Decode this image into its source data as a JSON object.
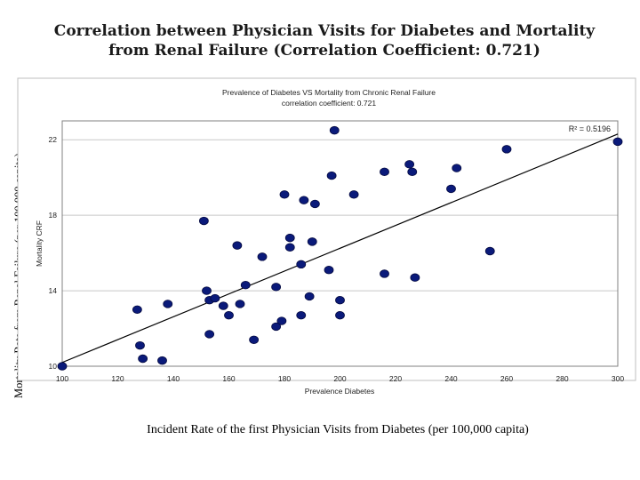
{
  "slide": {
    "title_line1": "Correlation between Physician Visits for Diabetes and Mortality",
    "title_line2": "from Renal Failure (Correlation Coefficient: 0.721)",
    "outer_ylabel": "Mortality Rate from Renal Failure (per 100,000 capita)",
    "outer_xlabel": "Incident Rate of the first Physician Visits from Diabetes (per 100,000 capita)"
  },
  "chart_data": {
    "type": "scatter",
    "title": "Prevalence of Diabetes VS Mortality from Chronic Renal Failure",
    "subtitle": "correlation coefficient: 0.721",
    "xlabel": "Prevalence Diabetes",
    "ylabel": "Mortality CRF",
    "xlim": [
      100,
      300
    ],
    "ylim": [
      10,
      23
    ],
    "x_ticks": [
      100,
      120,
      140,
      160,
      180,
      200,
      220,
      240,
      260,
      280,
      300
    ],
    "y_ticks": [
      10,
      14,
      18,
      22
    ],
    "grid": "horizontal",
    "point_color": "#0a1a7a",
    "trendline": {
      "x": [
        100,
        300
      ],
      "y": [
        10.2,
        22.3
      ],
      "label": "R² = 0.5196"
    },
    "points": [
      {
        "x": 100,
        "y": 10.0
      },
      {
        "x": 127,
        "y": 13.0
      },
      {
        "x": 128,
        "y": 11.1
      },
      {
        "x": 129,
        "y": 10.4
      },
      {
        "x": 136,
        "y": 10.3
      },
      {
        "x": 138,
        "y": 13.3
      },
      {
        "x": 151,
        "y": 17.7
      },
      {
        "x": 152,
        "y": 14.0
      },
      {
        "x": 153,
        "y": 13.5
      },
      {
        "x": 153,
        "y": 11.7
      },
      {
        "x": 155,
        "y": 13.6
      },
      {
        "x": 158,
        "y": 13.2
      },
      {
        "x": 160,
        "y": 12.7
      },
      {
        "x": 163,
        "y": 16.4
      },
      {
        "x": 164,
        "y": 13.3
      },
      {
        "x": 166,
        "y": 14.3
      },
      {
        "x": 169,
        "y": 11.4
      },
      {
        "x": 172,
        "y": 15.8
      },
      {
        "x": 177,
        "y": 14.2
      },
      {
        "x": 177,
        "y": 12.1
      },
      {
        "x": 179,
        "y": 12.4
      },
      {
        "x": 180,
        "y": 19.1
      },
      {
        "x": 182,
        "y": 16.8
      },
      {
        "x": 182,
        "y": 16.3
      },
      {
        "x": 186,
        "y": 12.7
      },
      {
        "x": 186,
        "y": 15.4
      },
      {
        "x": 187,
        "y": 18.8
      },
      {
        "x": 189,
        "y": 13.7
      },
      {
        "x": 190,
        "y": 16.6
      },
      {
        "x": 191,
        "y": 18.6
      },
      {
        "x": 196,
        "y": 15.1
      },
      {
        "x": 197,
        "y": 20.1
      },
      {
        "x": 198,
        "y": 22.5
      },
      {
        "x": 200,
        "y": 13.5
      },
      {
        "x": 200,
        "y": 12.7
      },
      {
        "x": 205,
        "y": 19.1
      },
      {
        "x": 216,
        "y": 14.9
      },
      {
        "x": 216,
        "y": 20.3
      },
      {
        "x": 225,
        "y": 20.7
      },
      {
        "x": 226,
        "y": 20.3
      },
      {
        "x": 227,
        "y": 14.7
      },
      {
        "x": 240,
        "y": 19.4
      },
      {
        "x": 242,
        "y": 20.5
      },
      {
        "x": 254,
        "y": 16.1
      },
      {
        "x": 260,
        "y": 21.5
      },
      {
        "x": 300,
        "y": 21.9
      }
    ]
  }
}
